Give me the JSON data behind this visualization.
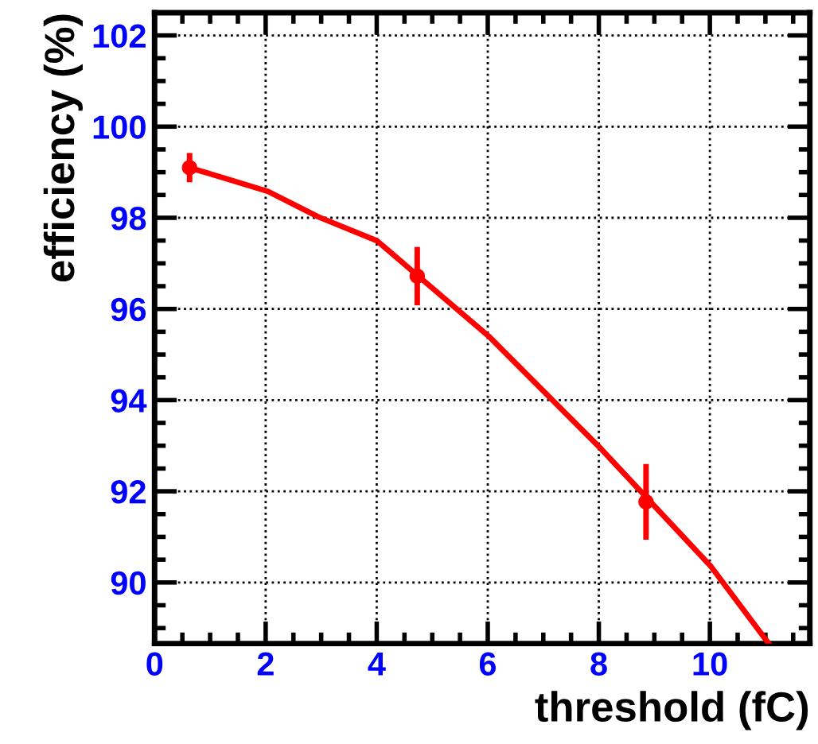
{
  "chart_data": {
    "type": "line",
    "xlabel": "threshold (fC)",
    "ylabel": "efficiency (%)",
    "xlim": [
      0,
      11.8
    ],
    "ylim": [
      88.66,
      102.5
    ],
    "xticks": [
      0,
      2,
      4,
      6,
      8,
      10
    ],
    "yticks": [
      90,
      92,
      94,
      96,
      98,
      100,
      102
    ],
    "grid": true,
    "series": [
      {
        "color": "#ff0000",
        "marker": "none",
        "line_style": "solid",
        "x": [
          0.63,
          2.04,
          2.95,
          4.0,
          6.01,
          6.96,
          8.01,
          10.02,
          11.06
        ],
        "values": [
          99.1,
          98.58,
          98.02,
          97.5,
          95.41,
          94.25,
          92.97,
          90.35,
          88.66
        ]
      },
      {
        "type": "scatter",
        "color": "#ff0000",
        "marker": "circle",
        "x": [
          0.63,
          4.73,
          8.85
        ],
        "values": [
          99.1,
          96.72,
          91.77
        ],
        "errors": [
          0.32,
          0.64,
          0.83
        ]
      }
    ]
  }
}
